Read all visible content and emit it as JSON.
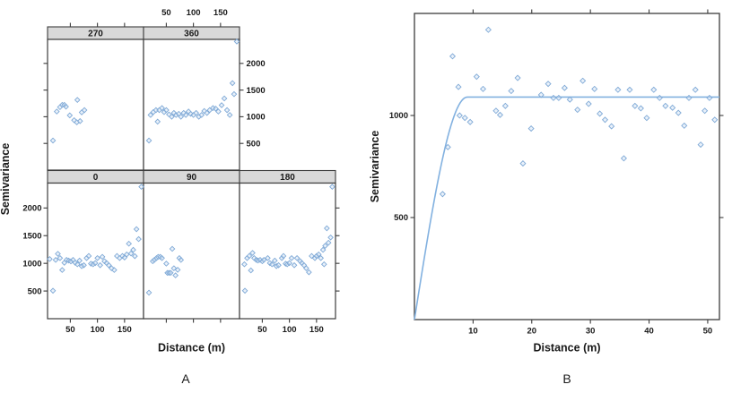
{
  "colors": {
    "background": "#ffffff",
    "axis": "#3c3c3c",
    "text": "#1a1a1a",
    "strip_bg": "#d9d9d9",
    "point_stroke": "#7fa9d6",
    "point_fill": "#cfe1f3",
    "curve": "#82b1e0"
  },
  "panel_a": {
    "caption": "A",
    "xlabel": "Distance (m)",
    "ylabel": "Semivariance",
    "strip_labels": [
      "270",
      "360",
      "0",
      "90",
      "180"
    ]
  },
  "panel_b": {
    "caption": "B",
    "xlabel": "Distance (m)",
    "ylabel": "Semivariance"
  },
  "chart_data": [
    {
      "type": "scatter",
      "title": "A",
      "xlabel": "Distance (m)",
      "ylabel": "Semivariance",
      "xlim": [
        8,
        185
      ],
      "ylim": [
        0,
        2450
      ],
      "x_ticks": [
        50,
        100,
        150
      ],
      "y_ticks": [
        500,
        1000,
        1500,
        2000
      ],
      "grid": false,
      "layout": "lattice-2rows-3cols",
      "panels": [
        {
          "name": "270",
          "row": 0,
          "col": 0,
          "points": [
            [
              18,
              554
            ],
            [
              25,
              1098
            ],
            [
              31,
              1180
            ],
            [
              35,
              1222
            ],
            [
              39,
              1222
            ],
            [
              42,
              1189
            ],
            [
              49,
              1026
            ],
            [
              57,
              935
            ],
            [
              62,
              896
            ],
            [
              63,
              1315
            ],
            [
              68,
              919
            ],
            [
              71,
              1082
            ],
            [
              76,
              1124
            ]
          ]
        },
        {
          "name": "360",
          "row": 0,
          "col": 1,
          "points": [
            [
              18,
              554
            ],
            [
              21,
              1033
            ],
            [
              26,
              1087
            ],
            [
              31,
              1124
            ],
            [
              34,
              908
            ],
            [
              37,
              1124
            ],
            [
              42,
              1163
            ],
            [
              46,
              1087
            ],
            [
              50,
              1124
            ],
            [
              55,
              1043
            ],
            [
              60,
              1000
            ],
            [
              64,
              1071
            ],
            [
              68,
              1033
            ],
            [
              73,
              1054
            ],
            [
              77,
              1000
            ],
            [
              82,
              1071
            ],
            [
              86,
              1033
            ],
            [
              91,
              1098
            ],
            [
              95,
              1054
            ],
            [
              100,
              1033
            ],
            [
              105,
              1071
            ],
            [
              110,
              1000
            ],
            [
              115,
              1033
            ],
            [
              120,
              1108
            ],
            [
              125,
              1071
            ],
            [
              130,
              1124
            ],
            [
              136,
              1163
            ],
            [
              141,
              1152
            ],
            [
              146,
              1098
            ],
            [
              152,
              1217
            ],
            [
              157,
              1343
            ],
            [
              162,
              1124
            ],
            [
              167,
              1033
            ],
            [
              172,
              1630
            ],
            [
              175,
              1424
            ],
            [
              180,
              2410
            ]
          ]
        },
        {
          "name": "0",
          "row": 1,
          "col": 0,
          "points": [
            [
              12,
              1078
            ],
            [
              18,
              505
            ],
            [
              23,
              1062
            ],
            [
              27,
              1172
            ],
            [
              31,
              1095
            ],
            [
              35,
              880
            ],
            [
              39,
              1010
            ],
            [
              43,
              1062
            ],
            [
              47,
              1050
            ],
            [
              51,
              1035
            ],
            [
              55,
              1062
            ],
            [
              59,
              1010
            ],
            [
              63,
              983
            ],
            [
              67,
              1050
            ],
            [
              71,
              950
            ],
            [
              75,
              966
            ],
            [
              80,
              1095
            ],
            [
              84,
              1133
            ],
            [
              88,
              994
            ],
            [
              92,
              983
            ],
            [
              96,
              1005
            ],
            [
              100,
              1095
            ],
            [
              105,
              966
            ],
            [
              109,
              1117
            ],
            [
              113,
              1038
            ],
            [
              117,
              1005
            ],
            [
              121,
              966
            ],
            [
              126,
              911
            ],
            [
              131,
              880
            ],
            [
              136,
              1133
            ],
            [
              141,
              1095
            ],
            [
              146,
              1133
            ],
            [
              150,
              1105
            ],
            [
              154,
              1161
            ],
            [
              158,
              1355
            ],
            [
              162,
              1178
            ],
            [
              166,
              1244
            ],
            [
              169,
              1130
            ],
            [
              172,
              1617
            ],
            [
              176,
              1438
            ],
            [
              181,
              2383
            ]
          ]
        },
        {
          "name": "90",
          "row": 1,
          "col": 1,
          "points": [
            [
              18,
              470
            ],
            [
              25,
              1038
            ],
            [
              28,
              1062
            ],
            [
              32,
              1095
            ],
            [
              35,
              1117
            ],
            [
              39,
              1117
            ],
            [
              42,
              1095
            ],
            [
              50,
              995
            ],
            [
              52,
              828
            ],
            [
              55,
              828
            ],
            [
              58,
              828
            ],
            [
              61,
              1262
            ],
            [
              64,
              911
            ],
            [
              67,
              783
            ],
            [
              71,
              883
            ],
            [
              74,
              1095
            ],
            [
              77,
              1062
            ]
          ]
        },
        {
          "name": "180",
          "row": 1,
          "col": 2,
          "points": [
            [
              17,
              983
            ],
            [
              18,
              505
            ],
            [
              22,
              1095
            ],
            [
              26,
              1133
            ],
            [
              29,
              872
            ],
            [
              32,
              1188
            ],
            [
              35,
              1095
            ],
            [
              39,
              1062
            ],
            [
              42,
              1050
            ],
            [
              46,
              1062
            ],
            [
              50,
              1038
            ],
            [
              53,
              1062
            ],
            [
              60,
              1095
            ],
            [
              64,
              1005
            ],
            [
              68,
              983
            ],
            [
              73,
              1050
            ],
            [
              76,
              950
            ],
            [
              80,
              966
            ],
            [
              86,
              1095
            ],
            [
              89,
              1133
            ],
            [
              93,
              994
            ],
            [
              96,
              983
            ],
            [
              100,
              1005
            ],
            [
              104,
              1095
            ],
            [
              109,
              966
            ],
            [
              114,
              1095
            ],
            [
              120,
              1038
            ],
            [
              123,
              1005
            ],
            [
              127,
              966
            ],
            [
              131,
              911
            ],
            [
              136,
              839
            ],
            [
              141,
              1133
            ],
            [
              147,
              1095
            ],
            [
              150,
              1133
            ],
            [
              154,
              1161
            ],
            [
              158,
              1095
            ],
            [
              162,
              1244
            ],
            [
              164,
              983
            ],
            [
              166,
              1316
            ],
            [
              169,
              1633
            ],
            [
              172,
              1372
            ],
            [
              176,
              1467
            ],
            [
              179,
              2383
            ]
          ]
        }
      ]
    },
    {
      "type": "scatter",
      "title": "B",
      "xlabel": "Distance (m)",
      "ylabel": "Semivariance",
      "xlim": [
        0,
        52
      ],
      "ylim": [
        0,
        1500
      ],
      "x_ticks": [
        10,
        20,
        30,
        40,
        50
      ],
      "y_ticks": [
        500,
        1000
      ],
      "grid": false,
      "points": [
        [
          4.8,
          615
        ],
        [
          5.7,
          845
        ],
        [
          6.5,
          1290
        ],
        [
          7.5,
          1140
        ],
        [
          7.7,
          1000
        ],
        [
          8.6,
          988
        ],
        [
          9.5,
          968
        ],
        [
          10.6,
          1190
        ],
        [
          11.7,
          1130
        ],
        [
          12.6,
          1420
        ],
        [
          13.9,
          1023
        ],
        [
          14.6,
          1003
        ],
        [
          15.5,
          1047
        ],
        [
          16.5,
          1120
        ],
        [
          17.6,
          1184
        ],
        [
          18.5,
          765
        ],
        [
          19.9,
          936
        ],
        [
          21.6,
          1101
        ],
        [
          22.8,
          1155
        ],
        [
          23.7,
          1086
        ],
        [
          24.6,
          1086
        ],
        [
          25.6,
          1135
        ],
        [
          26.5,
          1078
        ],
        [
          27.8,
          1028
        ],
        [
          28.7,
          1170
        ],
        [
          29.7,
          1057
        ],
        [
          30.7,
          1130
        ],
        [
          31.6,
          1009
        ],
        [
          32.5,
          979
        ],
        [
          33.6,
          947
        ],
        [
          34.7,
          1126
        ],
        [
          35.7,
          790
        ],
        [
          36.7,
          1126
        ],
        [
          37.6,
          1047
        ],
        [
          38.6,
          1035
        ],
        [
          39.6,
          988
        ],
        [
          40.8,
          1126
        ],
        [
          41.8,
          1086
        ],
        [
          42.8,
          1047
        ],
        [
          44,
          1038
        ],
        [
          45,
          1013
        ],
        [
          46,
          950
        ],
        [
          46.8,
          1086
        ],
        [
          47.9,
          1126
        ],
        [
          48.8,
          857
        ],
        [
          49.5,
          1023
        ],
        [
          50.3,
          1086
        ],
        [
          51.2,
          979
        ]
      ],
      "fit_line": {
        "model": "spherical",
        "nugget": 0,
        "sill": 1090,
        "range": 9
      }
    }
  ]
}
